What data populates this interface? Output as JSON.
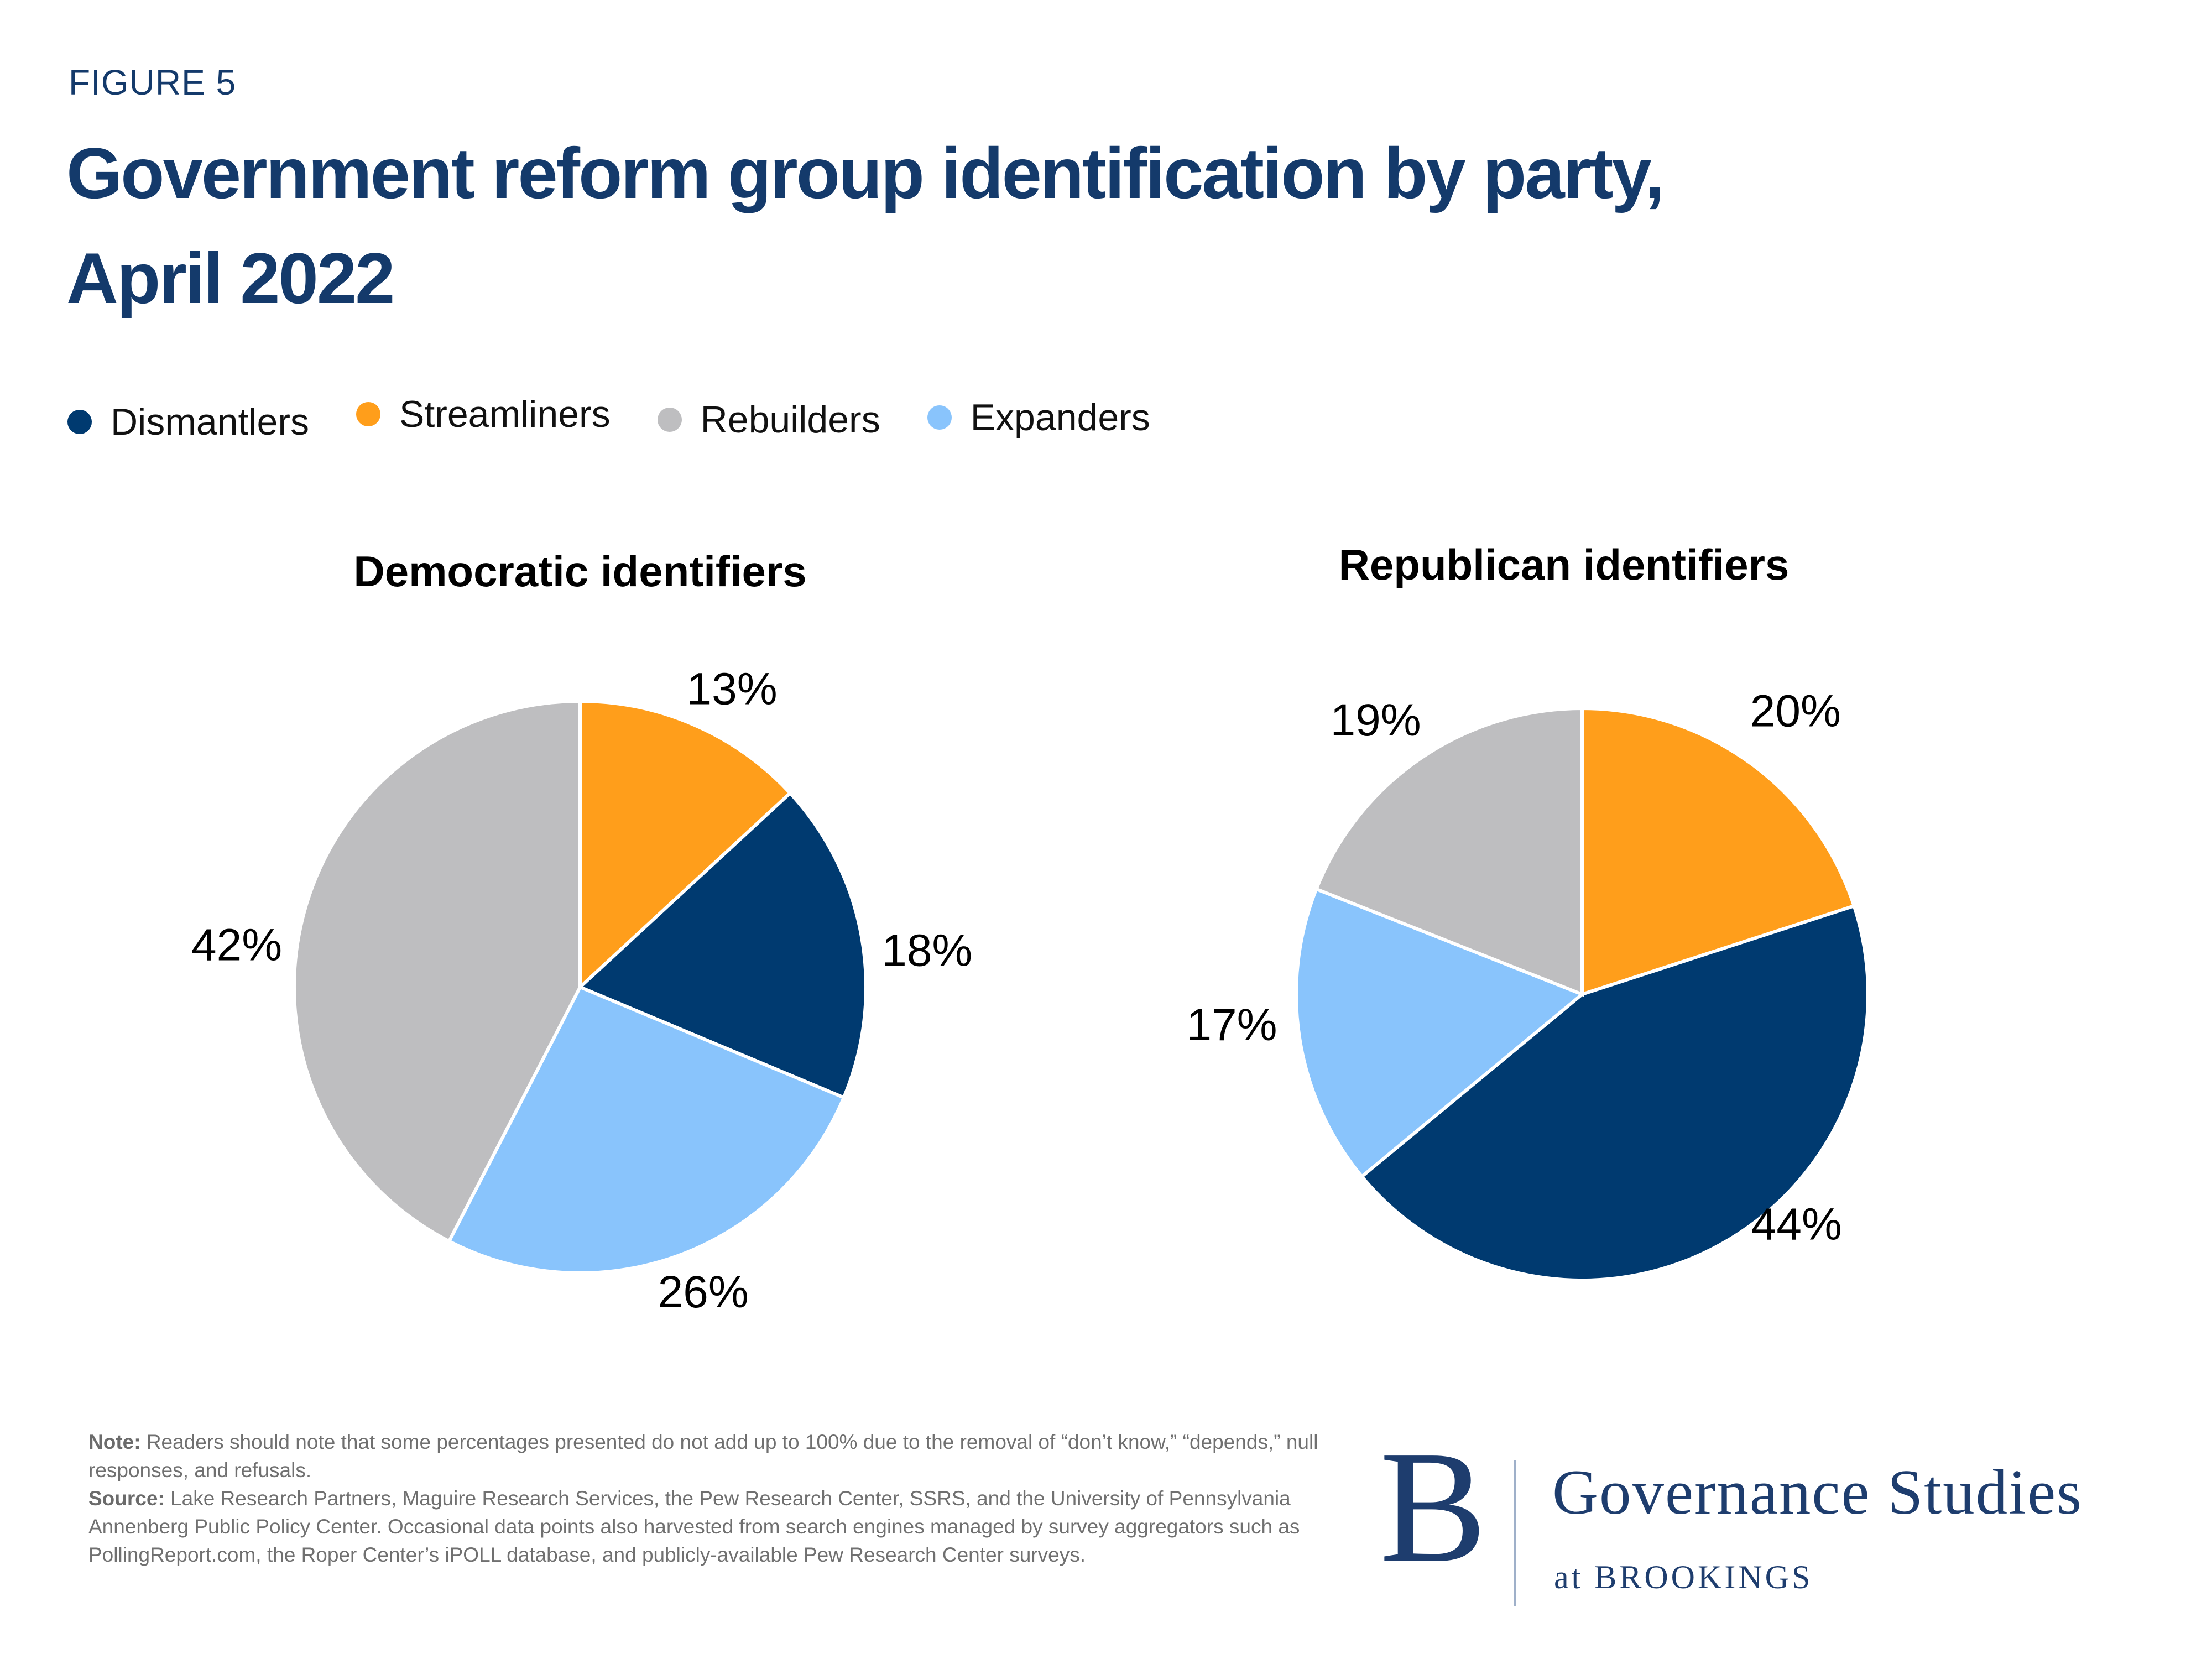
{
  "figure_label": "FIGURE 5",
  "title_line1": "Government reform group identification by party,",
  "title_line2": "April 2022",
  "legend": [
    {
      "label": "Dismantlers",
      "color": "#003A70"
    },
    {
      "label": "Streamliners",
      "color": "#FF9E1B"
    },
    {
      "label": "Rebuilders",
      "color": "#BEBEC0"
    },
    {
      "label": "Expanders",
      "color": "#89C4FC"
    }
  ],
  "chart_data": [
    {
      "type": "pie",
      "title": "Democratic identifiers",
      "start_angle_deg": 0,
      "direction": "clockwise",
      "value_suffix": "%",
      "slices": [
        {
          "label": "Streamliners",
          "value": 13
        },
        {
          "label": "Dismantlers",
          "value": 18
        },
        {
          "label": "Expanders",
          "value": 26
        },
        {
          "label": "Rebuilders",
          "value": 42
        }
      ]
    },
    {
      "type": "pie",
      "title": "Republican identifiers",
      "start_angle_deg": 0,
      "direction": "clockwise",
      "value_suffix": "%",
      "slices": [
        {
          "label": "Streamliners",
          "value": 20
        },
        {
          "label": "Dismantlers",
          "value": 44
        },
        {
          "label": "Expanders",
          "value": 17
        },
        {
          "label": "Rebuilders",
          "value": 19
        }
      ]
    }
  ],
  "note": {
    "note_label": "Note:",
    "note_text": " Readers should note that some percentages presented do not add up to 100% due to the removal of “don’t know,” “depends,” null responses, and refusals.",
    "source_label": "Source:",
    "source_text": " Lake Research Partners, Maguire Research Services, the Pew Research Center, SSRS, and the University of Pennsylvania Annenberg Public Policy Center. Occasional data points also harvested from search engines managed by survey aggregators such as PollingReport.com, the Roper Center’s iPOLL database, and publicly-available Pew Research Center surveys."
  },
  "logo": {
    "monogram": "B",
    "org": "Governance Studies",
    "suffix": "at BROOKINGS"
  },
  "colors": {
    "title_navy": "#143A6B",
    "logo_navy": "#1E3D6E",
    "note_gray": "#707070",
    "label_black": "#000000"
  }
}
